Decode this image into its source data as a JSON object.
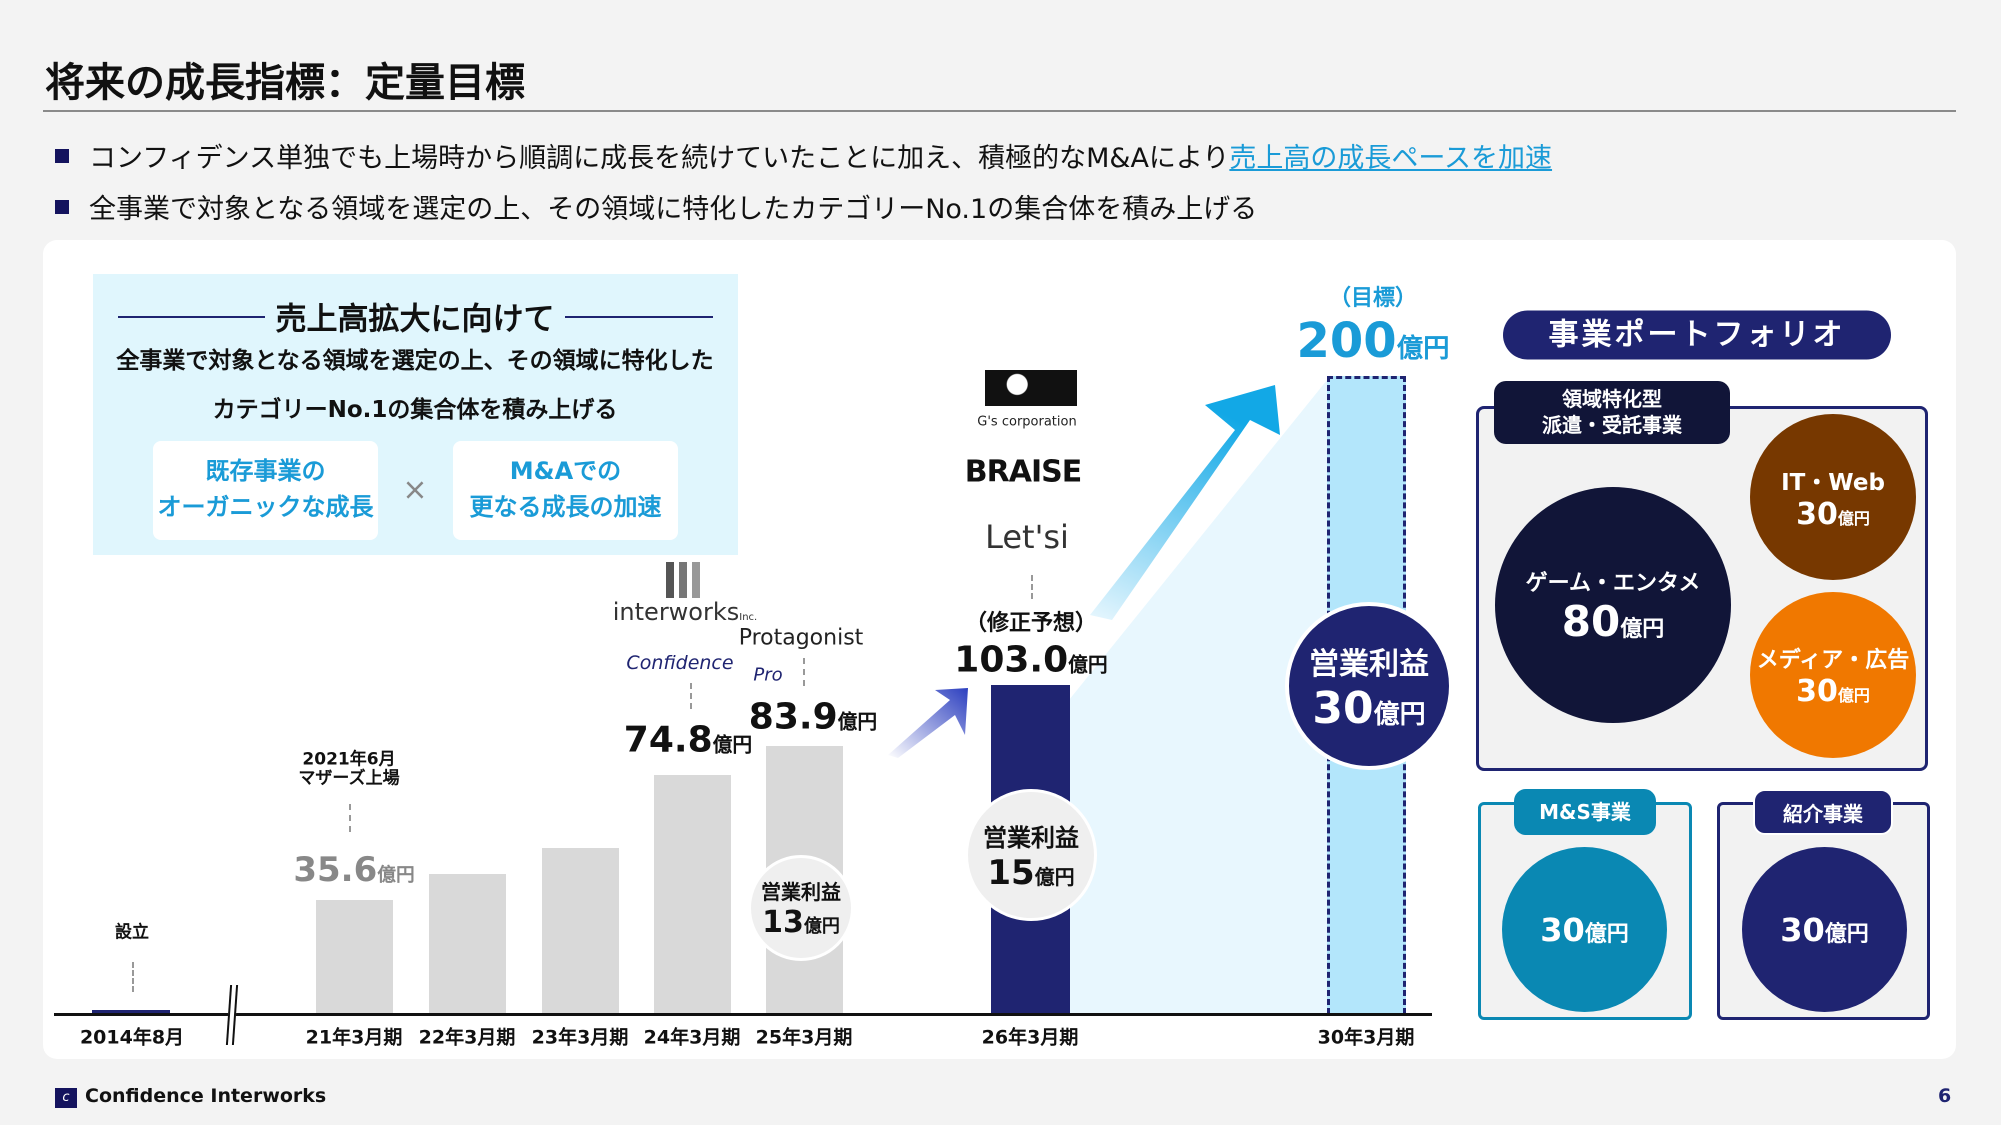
{
  "title": "将来の成長指標：定量目標",
  "bullets": [
    {
      "text": "コンフィデンス単独でも上場時から順調に成長を続けていたことに加え、積極的なM&Aにより",
      "link": "売上高の成長ペースを加速"
    },
    {
      "text": "全事業で対象となる領域を選定の上、その領域に特化したカテゴリーNo.1の集合体を積み上げる",
      "link": ""
    }
  ],
  "left_box": {
    "heading": "売上高拡大に向けて",
    "line1": "全事業で対象となる領域を選定の上、その領域に特化した",
    "line2": "カテゴリーNo.1の集合体を積み上げる",
    "box1": [
      "既存事業の",
      "オーガニックな成長"
    ],
    "times": "×",
    "box2": [
      "M&Aでの",
      "更なる成長の加速"
    ]
  },
  "chart_data": {
    "type": "bar",
    "unit": "億円",
    "categories": [
      "2014年8月",
      "21年3月期",
      "22年3月期",
      "23年3月期",
      "24年3月期",
      "25年3月期",
      "26年3月期",
      "30年3月期"
    ],
    "values": [
      0,
      35.6,
      44,
      52,
      74.8,
      83.9,
      103.0,
      200
    ],
    "labels": {
      "35.6": "35.6",
      "74.8": "74.8",
      "83.9": "83.9",
      "103.0": "103.0",
      "200": "200"
    },
    "colors": {
      "past": "#d9d9d9",
      "forecast": "#1f2471",
      "target": "#b3e6fb"
    }
  },
  "annotations": {
    "founded": "設立",
    "listing": [
      "2021年6月",
      "マザーズ上場"
    ],
    "forecast": "（修正予想）",
    "target": "（目標）",
    "unit": "億円",
    "v21": "35.6",
    "v24": "74.8",
    "v25": "83.9",
    "v26": "103.0",
    "v30": "200",
    "op_label": "営業利益",
    "op25": "13",
    "op26": "15",
    "op30": "30"
  },
  "logos": {
    "gs": "G's corporation",
    "braise": "BRAISE",
    "letsi": "Let'si",
    "interworks": "interworks",
    "inc": "Inc.",
    "protagonist": "Protagonist",
    "confidence": "Confidence",
    "pro": "Pro"
  },
  "portfolio": {
    "title": "事業ポートフォリオ",
    "main_tag": [
      "領域特化型",
      "派遣・受託事業"
    ],
    "game": {
      "label": "ゲーム・エンタメ",
      "value": "80"
    },
    "itweb": {
      "label": "IT・Web",
      "value": "30"
    },
    "media": {
      "label": "メディア・広告",
      "value": "30"
    },
    "ms": {
      "tag": "M&S事業",
      "value": "30"
    },
    "intro": {
      "tag": "紹介事業",
      "value": "30"
    },
    "unit": "億円"
  },
  "footer": {
    "company": "Confidence Interworks",
    "page": "6"
  }
}
